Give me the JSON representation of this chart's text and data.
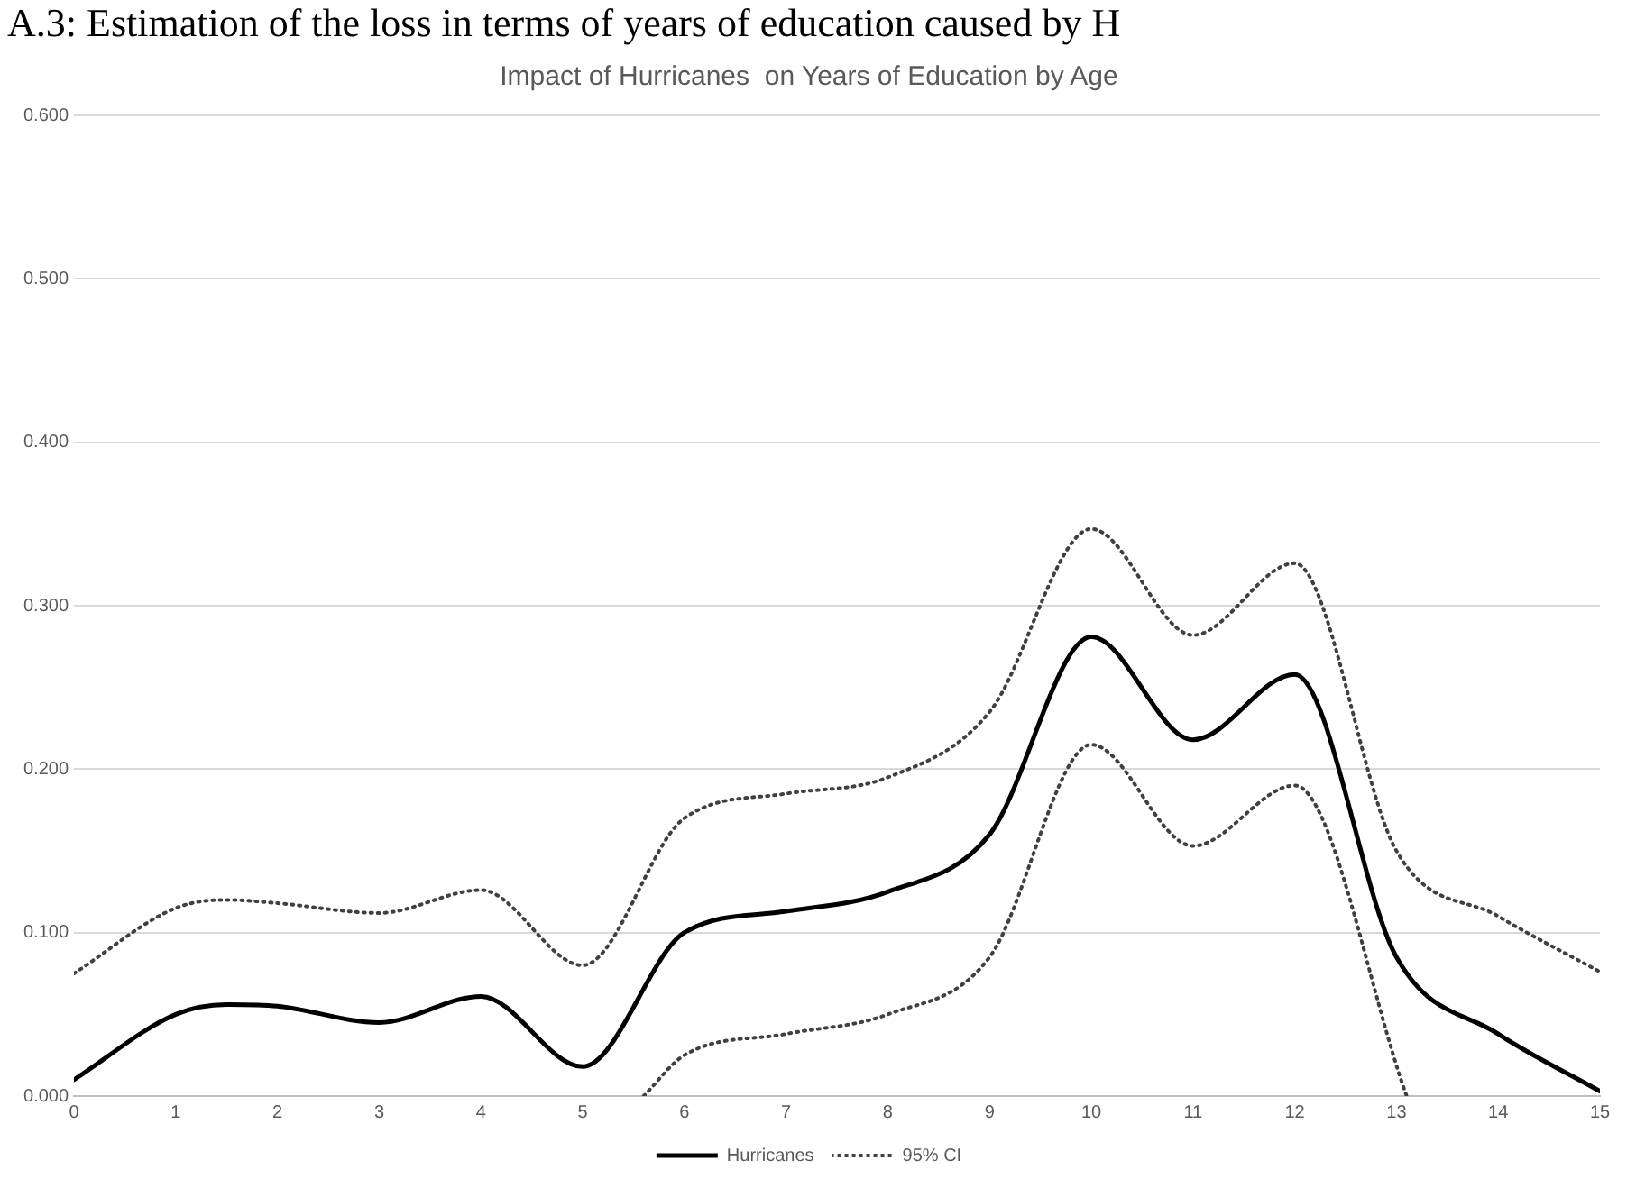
{
  "chart_data": {
    "type": "line",
    "title": "Impact of Hurricanes  on Years of Education by Age",
    "annotations": [
      "A.3: Estimation of the loss in terms of years of education caused by H"
    ],
    "xlim": [
      0,
      15
    ],
    "xticks": [
      0,
      1,
      2,
      3,
      4,
      5,
      6,
      7,
      8,
      9,
      10,
      11,
      12,
      13,
      14,
      15
    ],
    "ylim": [
      0,
      0.6
    ],
    "yticks": [
      {
        "value": 0,
        "label": "0.000"
      },
      {
        "value": 0.1,
        "label": "0.100"
      },
      {
        "value": 0.2,
        "label": "0.200"
      },
      {
        "value": 0.3,
        "label": "0.300"
      },
      {
        "value": 0.4,
        "label": "0.400"
      },
      {
        "value": 0.5,
        "label": "0.500"
      },
      {
        "value": 0.6,
        "label": "0.600"
      }
    ],
    "grid": "y",
    "legend": "bottom",
    "marker": "none",
    "series": [
      {
        "name": "Hurricanes",
        "color": "#000000",
        "line_style": "solid",
        "x": [
          0,
          1,
          1.5,
          2,
          3,
          4,
          5,
          6,
          7,
          8,
          9,
          10,
          11,
          12,
          13,
          14,
          15
        ],
        "values": [
          0.01,
          0.05,
          0.056,
          0.055,
          0.045,
          0.061,
          0.018,
          0.1,
          0.113,
          0.125,
          0.16,
          0.281,
          0.218,
          0.258,
          0.085,
          0.038,
          0.003
        ]
      },
      {
        "name": "95% CI",
        "color": "#404040",
        "line_style": "dotted",
        "x": [
          0,
          1,
          1.5,
          2,
          3,
          4,
          5,
          6,
          7,
          8,
          9,
          10,
          11,
          12,
          13,
          14,
          15
        ],
        "values": [
          0.075,
          0.115,
          0.12,
          0.118,
          0.112,
          0.126,
          0.08,
          0.17,
          0.185,
          0.195,
          0.235,
          0.347,
          0.282,
          0.326,
          0.15,
          0.11,
          0.076
        ]
      },
      {
        "color": "#404040",
        "line_style": "dotted",
        "x": [
          5.6,
          6,
          7,
          8,
          9,
          10,
          11,
          12,
          13.1
        ],
        "values": [
          0.0,
          0.025,
          0.038,
          0.05,
          0.085,
          0.215,
          0.153,
          0.19,
          0.0
        ]
      }
    ]
  }
}
